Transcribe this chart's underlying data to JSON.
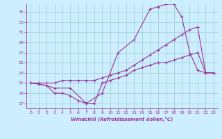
{
  "xlabel": "Windchill (Refroidissement éolien,°C)",
  "bg_color": "#cceeff",
  "line_color": "#993399",
  "grid_color": "#99cccc",
  "x_ticks": [
    0,
    1,
    2,
    3,
    4,
    5,
    6,
    7,
    8,
    9,
    10,
    11,
    12,
    13,
    14,
    15,
    16,
    17,
    18,
    19,
    20,
    21,
    22,
    23
  ],
  "y_ticks": [
    17,
    19,
    21,
    23,
    25,
    27,
    29,
    31,
    33,
    35
  ],
  "xlim": [
    -0.5,
    23.5
  ],
  "ylim": [
    16.0,
    36.5
  ],
  "line1_x": [
    0,
    1,
    2,
    3,
    4,
    5,
    6,
    7,
    8,
    9,
    10,
    11,
    12,
    13,
    14,
    15,
    16,
    17,
    18,
    19,
    20,
    21,
    22,
    23
  ],
  "line1_y": [
    21,
    20.8,
    20.5,
    19.0,
    19.0,
    18.5,
    17.5,
    17.0,
    17.0,
    21.0,
    21.5,
    22.0,
    22.5,
    23.5,
    24.0,
    24.5,
    25.0,
    25.0,
    25.5,
    26.0,
    26.5,
    27.0,
    23.0,
    23.0
  ],
  "line2_x": [
    0,
    1,
    2,
    3,
    4,
    5,
    6,
    7,
    8,
    9,
    10,
    11,
    12,
    13,
    14,
    15,
    16,
    17,
    18,
    19,
    20,
    21,
    22,
    23
  ],
  "line2_y": [
    21,
    21,
    21,
    21,
    21.5,
    21.5,
    21.5,
    21.5,
    21.5,
    22,
    22.5,
    23,
    23.5,
    24.5,
    25.5,
    26.5,
    27.5,
    28.5,
    29.5,
    30.5,
    31.5,
    32.0,
    23.0,
    23.0
  ],
  "line3_x": [
    0,
    1,
    2,
    3,
    5,
    7,
    9,
    11,
    13,
    15,
    16,
    17,
    18,
    19,
    20,
    21,
    22,
    23
  ],
  "line3_y": [
    21,
    20.8,
    20.5,
    20.0,
    20.0,
    17.0,
    19.0,
    27.0,
    29.5,
    35.5,
    36.0,
    36.5,
    36.5,
    34.0,
    27.0,
    23.5,
    23.0,
    23.0
  ]
}
